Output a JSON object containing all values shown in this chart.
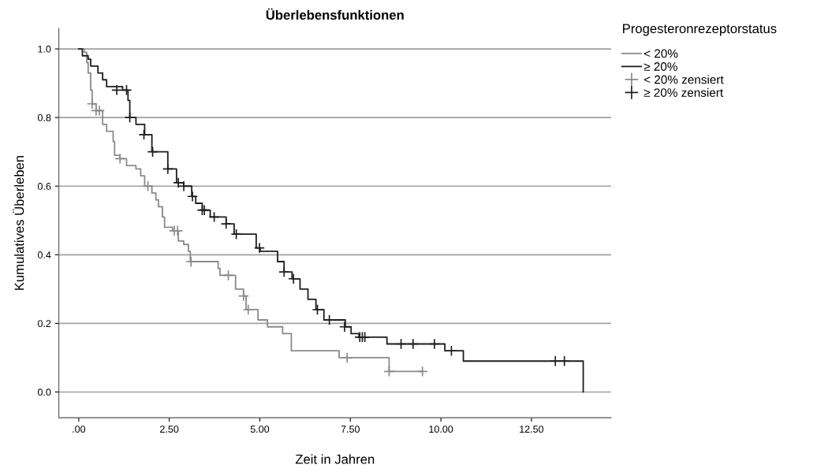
{
  "chart_data": {
    "type": "step",
    "title": "Überlebensfunktionen",
    "xlabel": "Zeit in Jahren",
    "ylabel": "Kumulatives Überleben",
    "legend_title": "Progesteronrezeptorstatus",
    "legend": "top right",
    "grid": "y",
    "xlim": [
      -0.55,
      14.7
    ],
    "ylim": [
      -0.075,
      1.06
    ],
    "xticks": [
      {
        "value": 0,
        "label": ".00"
      },
      {
        "value": 2.5,
        "label": "2.50"
      },
      {
        "value": 5,
        "label": "5.00"
      },
      {
        "value": 7.5,
        "label": "7.50"
      },
      {
        "value": 10,
        "label": "10.00"
      },
      {
        "value": 12.5,
        "label": "12.50"
      }
    ],
    "yticks": [
      {
        "value": 0,
        "label": "0.0"
      },
      {
        "value": 0.2,
        "label": "0.2"
      },
      {
        "value": 0.4,
        "label": "0.4"
      },
      {
        "value": 0.6,
        "label": "0.6"
      },
      {
        "value": 0.8,
        "label": "0.8"
      },
      {
        "value": 1,
        "label": "1.0"
      }
    ],
    "series": [
      {
        "name": "< 20%",
        "color": "#8a8a8a",
        "x": [
          0,
          0.15,
          0.22,
          0.26,
          0.33,
          0.37,
          0.48,
          0.66,
          0.77,
          0.95,
          0.99,
          1.14,
          1.32,
          1.58,
          1.71,
          1.82,
          2.02,
          2.13,
          2.2,
          2.31,
          2.37,
          2.59,
          2.75,
          2.9,
          3.03,
          3.08,
          3.85,
          3.9,
          4.33,
          4.55,
          4.62,
          4.95,
          5.21,
          5.63,
          5.87,
          7.19,
          8.57,
          9.49
        ],
        "values": [
          1,
          0.99,
          0.96,
          0.93,
          0.88,
          0.84,
          0.82,
          0.78,
          0.76,
          0.73,
          0.69,
          0.68,
          0.66,
          0.65,
          0.63,
          0.6,
          0.58,
          0.56,
          0.54,
          0.51,
          0.48,
          0.47,
          0.44,
          0.43,
          0.41,
          0.38,
          0.36,
          0.34,
          0.3,
          0.28,
          0.24,
          0.21,
          0.19,
          0.17,
          0.12,
          0.1,
          0.06,
          0.06
        ]
      },
      {
        "name": "≥ 20%",
        "color": "#1e1e1e",
        "x": [
          0,
          0.1,
          0.26,
          0.33,
          0.53,
          0.66,
          0.77,
          1.21,
          1.36,
          1.41,
          1.58,
          1.82,
          2.02,
          2.46,
          2.7,
          2.9,
          3.12,
          3.23,
          3.41,
          3.63,
          4.07,
          4.29,
          4.9,
          5.01,
          5.49,
          5.67,
          5.89,
          6.11,
          6.33,
          6.55,
          6.77,
          7.36,
          7.52,
          7.74,
          8.51,
          10.11,
          10.62,
          13.93
        ],
        "values": [
          1,
          0.98,
          0.97,
          0.95,
          0.93,
          0.91,
          0.89,
          0.88,
          0.85,
          0.8,
          0.78,
          0.75,
          0.7,
          0.65,
          0.61,
          0.6,
          0.57,
          0.55,
          0.53,
          0.51,
          0.49,
          0.46,
          0.42,
          0.41,
          0.38,
          0.35,
          0.33,
          0.3,
          0.27,
          0.24,
          0.21,
          0.19,
          0.17,
          0.16,
          0.14,
          0.12,
          0.09,
          0
        ]
      },
      {
        "name": "< 20% zensiert",
        "type": "scatter",
        "marker": "cross",
        "color": "#8a8a8a",
        "x": [
          0.37,
          0.48,
          0.57,
          1.14,
          1.91,
          2.64,
          2.73,
          3.1,
          4.13,
          4.55,
          4.68,
          7.41,
          8.57,
          9.49
        ],
        "values": [
          0.84,
          0.82,
          0.82,
          0.68,
          0.6,
          0.47,
          0.47,
          0.38,
          0.34,
          0.28,
          0.24,
          0.1,
          0.06,
          0.06
        ]
      },
      {
        "name": "≥ 20% zensiert",
        "type": "scatter",
        "marker": "cross",
        "color": "#1e1e1e",
        "x": [
          1.05,
          1.32,
          1.41,
          1.8,
          2.04,
          2.46,
          2.75,
          2.9,
          3.14,
          3.41,
          3.47,
          3.74,
          4.07,
          4.35,
          4.99,
          5.67,
          5.93,
          6.59,
          6.92,
          7.34,
          7.76,
          7.83,
          7.9,
          8.9,
          9.23,
          9.82,
          10.29,
          13.16,
          13.41
        ],
        "values": [
          0.88,
          0.88,
          0.8,
          0.75,
          0.7,
          0.65,
          0.61,
          0.6,
          0.57,
          0.53,
          0.53,
          0.51,
          0.49,
          0.46,
          0.42,
          0.35,
          0.33,
          0.24,
          0.21,
          0.19,
          0.16,
          0.16,
          0.16,
          0.14,
          0.14,
          0.14,
          0.12,
          0.09,
          0.09
        ]
      }
    ]
  }
}
